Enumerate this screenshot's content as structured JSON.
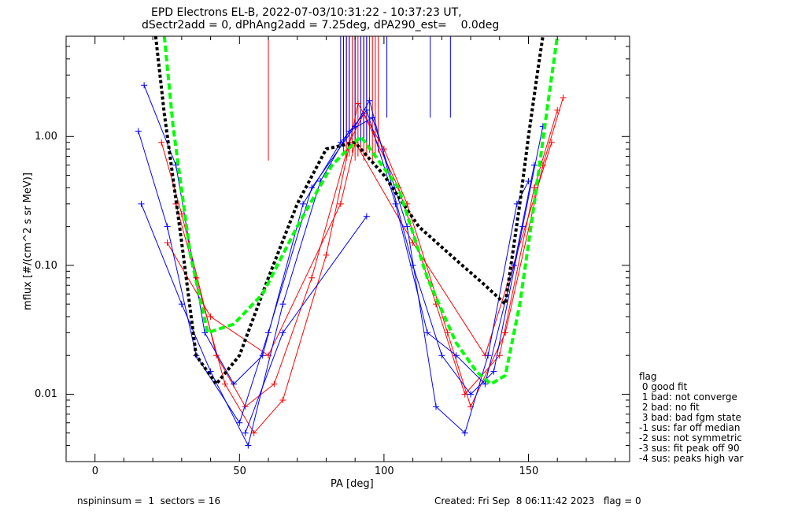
{
  "chart_data": {
    "type": "line",
    "title": "EPD Electrons EL-B, 2022-07-03/10:31:22 - 10:37:23 UT,",
    "subtitle": "dSectr2add = 0, dPhAng2add = 7.25deg, dPA290_est=    0.0deg",
    "xlabel": "PA [deg]",
    "ylabel": "mflux [#/(cm^2 s sr MeV)]",
    "xlim": [
      -10,
      185
    ],
    "ylim": [
      0.003,
      6
    ],
    "yscale": "log",
    "xticks": [
      "0",
      "50",
      "100",
      "150"
    ],
    "yticks": [
      "0.01",
      "0.10",
      "1.00"
    ],
    "grid": false,
    "series": [
      {
        "color": "#ff0000",
        "x": [
          23,
          30,
          42,
          52,
          62,
          75,
          88,
          93,
          105,
          118,
          128,
          140,
          152,
          160
        ],
        "values": [
          0.9,
          0.25,
          0.02,
          0.008,
          0.012,
          0.08,
          0.9,
          1.5,
          0.4,
          0.05,
          0.01,
          0.02,
          0.4,
          1.6
        ]
      },
      {
        "color": "#ff0000",
        "x": [
          28,
          35,
          45,
          55,
          65,
          80,
          91,
          100,
          108,
          122,
          130,
          142,
          155,
          162
        ],
        "values": [
          0.3,
          0.08,
          0.012,
          0.005,
          0.009,
          0.12,
          1.8,
          0.8,
          0.3,
          0.03,
          0.008,
          0.03,
          0.6,
          2.0
        ]
      },
      {
        "color": "#ff0000",
        "x": [
          25,
          40,
          60,
          85,
          90,
          110,
          135,
          158
        ],
        "values": [
          0.15,
          0.04,
          0.02,
          0.3,
          0.9,
          0.15,
          0.02,
          0.9
        ]
      },
      {
        "color": "#0000ff",
        "x": [
          17,
          28,
          38,
          48,
          58,
          72,
          85,
          94,
          104,
          115,
          125,
          135,
          145,
          152
        ],
        "values": [
          2.5,
          0.6,
          0.03,
          0.012,
          0.02,
          0.3,
          0.9,
          1.6,
          0.3,
          0.03,
          0.02,
          0.012,
          0.1,
          0.6
        ]
      },
      {
        "color": "#0000ff",
        "x": [
          15,
          25,
          35,
          50,
          60,
          75,
          90,
          95,
          110,
          120,
          130,
          138,
          148,
          155
        ],
        "values": [
          1.1,
          0.2,
          0.02,
          0.006,
          0.03,
          0.4,
          1.2,
          1.9,
          0.1,
          0.02,
          0.01,
          0.015,
          0.2,
          1.2
        ]
      },
      {
        "color": "#0000ff",
        "x": [
          16,
          30,
          40,
          53,
          65,
          78,
          88,
          96,
          108,
          118,
          128,
          136,
          146,
          150
        ],
        "values": [
          0.3,
          0.05,
          0.015,
          0.004,
          0.05,
          0.45,
          1.1,
          1.4,
          0.2,
          0.008,
          0.005,
          0.02,
          0.3,
          0.45
        ]
      },
      {
        "color": "#0000ff",
        "x": [
          52,
          65,
          94
        ],
        "values": [
          0.005,
          0.03,
          0.24
        ]
      }
    ],
    "fits": [
      {
        "color": "#000000",
        "style": "dotted",
        "x": [
          21,
          24,
          30,
          35,
          42,
          50,
          60,
          70,
          80,
          90,
          100,
          112,
          125,
          135,
          142,
          147,
          150,
          153,
          155
        ],
        "values": [
          6,
          1.5,
          0.15,
          0.02,
          0.012,
          0.02,
          0.08,
          0.3,
          0.8,
          0.9,
          0.5,
          0.2,
          0.11,
          0.07,
          0.05,
          0.3,
          1.0,
          3.0,
          6
        ]
      },
      {
        "color": "#00ff00",
        "style": "dashed",
        "x": [
          24,
          27,
          33,
          39,
          48,
          58,
          70,
          82,
          92,
          105,
          115,
          125,
          132,
          137,
          142,
          147,
          152,
          157,
          160
        ],
        "values": [
          6,
          1.2,
          0.12,
          0.03,
          0.035,
          0.06,
          0.2,
          0.6,
          1.0,
          0.4,
          0.08,
          0.025,
          0.015,
          0.012,
          0.014,
          0.05,
          0.3,
          2.0,
          6
        ]
      }
    ],
    "verticals": {
      "red": [
        60,
        86,
        87,
        88,
        89,
        90,
        91,
        92,
        93,
        94,
        95,
        96,
        97,
        98
      ],
      "blue": [
        85,
        86,
        87,
        88,
        90,
        92,
        93,
        94,
        101,
        116,
        123
      ]
    }
  },
  "legend": {
    "title": "flag",
    "items": [
      " 0 good fit",
      " 1 bad: not converge",
      " 2 bad: no fit",
      " 3 bad: bad fgm state",
      "-1 sus: far off median",
      "-2 sus: not symmetric",
      "-3 sus: fit peak off 90",
      "-4 sus: peaks high var"
    ]
  },
  "footer": {
    "left": "nspininsum =  1  sectors = 16",
    "right": "Created: Fri Sep  8 06:11:42 2023   flag = 0"
  }
}
